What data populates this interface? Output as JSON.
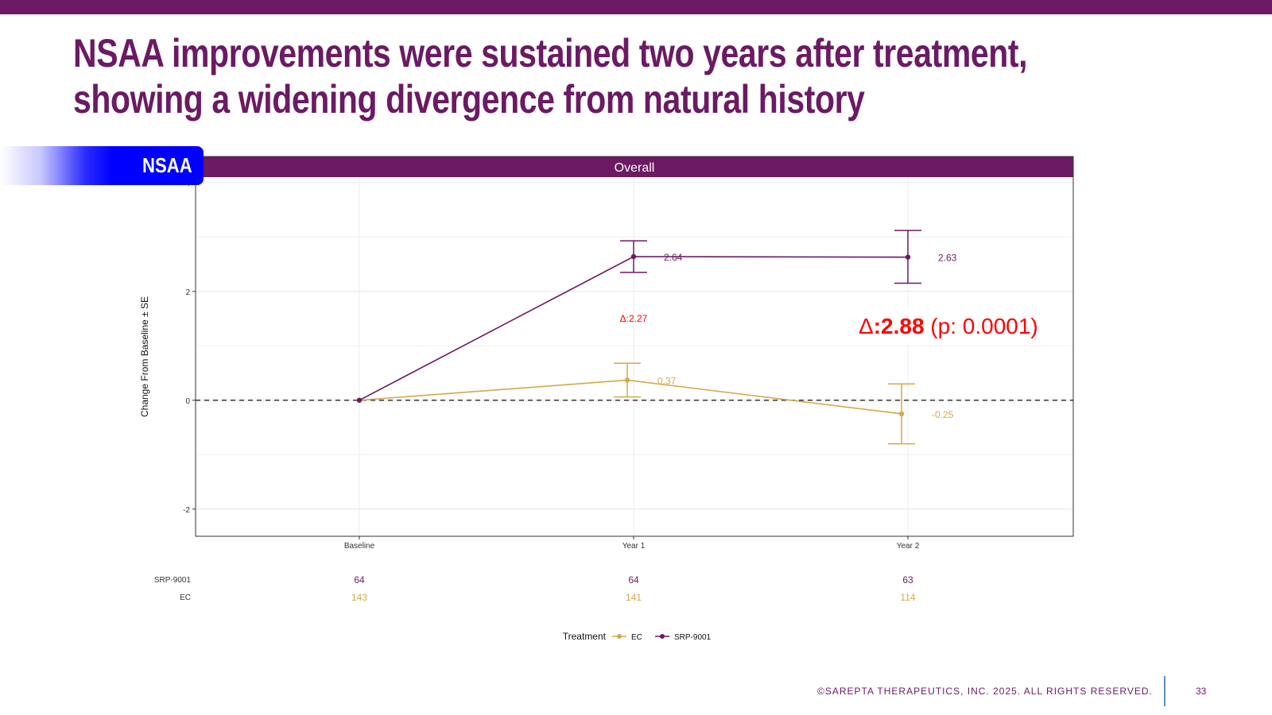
{
  "slide": {
    "title": "NSAA improvements were sustained two years after treatment, showing a widening divergence from natural history",
    "section_label": "NSAA",
    "footer_text": "©SAREPTA THERAPEUTICS, INC. 2025.  ALL RIGHTS RESERVED.",
    "page_number": "33"
  },
  "colors": {
    "brand": "#6b1a63",
    "srp": "#6b1a63",
    "ec": "#d4a84b",
    "delta": "#ff0000",
    "tab_blue": "#0000ff"
  },
  "chart_data": {
    "type": "line",
    "panel_title": "Overall",
    "ylabel": "Change From Baseline ± SE",
    "xlabel": "",
    "categories": [
      "Baseline",
      "Year 1",
      "Year 2"
    ],
    "ylim": [
      -2.5,
      4.1
    ],
    "yticks": [
      -2,
      0,
      2,
      4
    ],
    "grid": true,
    "reference_line": 0,
    "series": [
      {
        "name": "SRP-9001",
        "color": "#6b1a63",
        "values": [
          0,
          2.64,
          2.63
        ],
        "se_lower": [
          0,
          2.35,
          2.15
        ],
        "se_upper": [
          0,
          2.93,
          3.12
        ],
        "labels": [
          "",
          "2.64",
          "2.63"
        ],
        "n": [
          "64",
          "64",
          "63"
        ]
      },
      {
        "name": "EC",
        "color": "#d4a84b",
        "values": [
          0,
          0.37,
          -0.25
        ],
        "se_lower": [
          0,
          0.06,
          -0.8
        ],
        "se_upper": [
          0,
          0.68,
          0.3
        ],
        "labels": [
          "",
          "0.37",
          "-0.25"
        ],
        "n": [
          "143",
          "141",
          "114"
        ]
      }
    ],
    "annotations": [
      {
        "category": "Year 1",
        "y": 1.5,
        "symbol": "Δ",
        "text": ":2.27",
        "p_text": ""
      },
      {
        "category": "Year 2",
        "y": 1.25,
        "symbol": "Δ",
        "text": ":2.88",
        "p_text": " (p: 0.0001)"
      }
    ],
    "risk_table": {
      "rows": [
        {
          "label": "SRP-9001",
          "values": [
            "64",
            "64",
            "63"
          ]
        },
        {
          "label": "EC",
          "values": [
            "143",
            "141",
            "114"
          ]
        }
      ]
    },
    "legend": {
      "title": "Treatment",
      "position": "bottom",
      "entries": [
        "EC",
        "SRP-9001"
      ]
    }
  }
}
